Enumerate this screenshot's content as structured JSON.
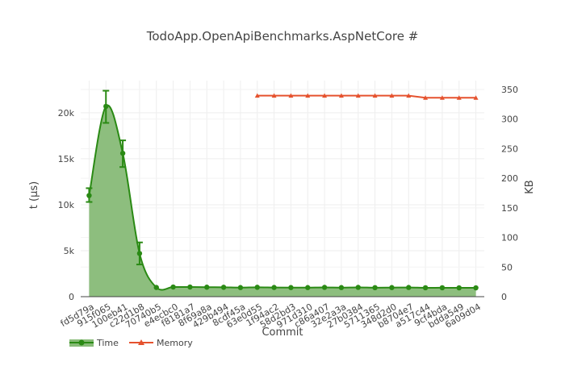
{
  "chart_data": {
    "type": "line",
    "title": "TodoApp.OpenApiBenchmarks.AspNetCore #",
    "xlabel": "Commit",
    "ylabel": "t (µs)",
    "y2label": "KB",
    "categories": [
      "fd5d79a",
      "915f065",
      "100eb41",
      "c22d1b8",
      "70740b5",
      "e4ecbc0",
      "f8181a7",
      "8f69a8a",
      "429b494",
      "8cdf45a",
      "63e0d55",
      "1f94ac2",
      "58d2bd3",
      "971d310",
      "c86a407",
      "32e2a3a",
      "27b0384",
      "5711365",
      "348d2d0",
      "b8704e7",
      "a517c44",
      "9cf4bda",
      "bdda549",
      "6a09d04"
    ],
    "yticks": [
      0,
      5000,
      10000,
      15000,
      20000
    ],
    "yticklabels": [
      "0",
      "5k",
      "10k",
      "15k",
      "20k"
    ],
    "ylim": [
      0,
      23500
    ],
    "y2ticks": [
      0,
      50,
      100,
      150,
      200,
      250,
      300,
      350
    ],
    "y2lim": [
      0,
      365
    ],
    "grid": true,
    "legend_position": "bottom-left",
    "series": [
      {
        "name": "Time",
        "axis": "y",
        "color": "#2a8a14",
        "fill": "#87bb77",
        "values": [
          11000,
          20700,
          15600,
          4700,
          1000,
          1050,
          1050,
          1030,
          1020,
          990,
          1020,
          1000,
          990,
          990,
          1010,
          990,
          1010,
          980,
          990,
          1000,
          970,
          970,
          960,
          960
        ],
        "error_low": [
          10300,
          18900,
          14100,
          3500,
          null,
          null,
          null,
          null,
          null,
          null,
          null,
          null,
          null,
          null,
          null,
          null,
          null,
          null,
          null,
          null,
          null,
          null,
          null,
          null
        ],
        "error_high": [
          11800,
          22400,
          17000,
          5900,
          null,
          null,
          null,
          null,
          null,
          null,
          null,
          null,
          null,
          null,
          null,
          null,
          null,
          null,
          null,
          null,
          null,
          null,
          null,
          null
        ]
      },
      {
        "name": "Memory",
        "axis": "y2",
        "color": "#e5522e",
        "values": [
          null,
          null,
          null,
          null,
          null,
          null,
          null,
          null,
          null,
          null,
          339.6,
          339.6,
          339.6,
          339.6,
          339.6,
          339.6,
          339.6,
          339.6,
          339.6,
          339.6,
          336.0,
          336.0,
          336.0,
          336.0
        ]
      }
    ]
  }
}
